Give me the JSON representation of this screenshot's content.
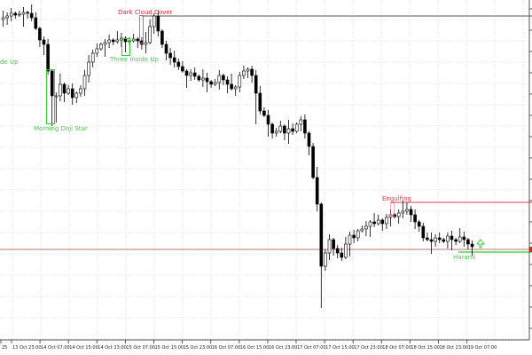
{
  "chart_data": {
    "type": "candlestick",
    "grid": true,
    "x_tick_labels": [
      "25",
      "13 Oct 23:00",
      "14 Oct 07:00",
      "14 Oct 15:00",
      "14 Oct 23:00",
      "15 Oct 07:00",
      "15 Oct 15:00",
      "15 Oct 23:00",
      "16 Oct 07:00",
      "16 Oct 15:00",
      "16 Oct 23:00",
      "17 Oct 07:00",
      "17 Oct 15:00",
      "17 Oct 23:00",
      "18 Oct 07:00",
      "18 Oct 15:00",
      "18 Oct 23:00",
      "19 Oct 07:00"
    ],
    "close": [
      380,
      382,
      385,
      383,
      384,
      386,
      385,
      380,
      368,
      355,
      350,
      320,
      292,
      292,
      305,
      295,
      300,
      290,
      295,
      300,
      315,
      330,
      340,
      345,
      350,
      352,
      355,
      353,
      355,
      357,
      353,
      354,
      356,
      354,
      350,
      352,
      370,
      382,
      365,
      350,
      340,
      335,
      330,
      325,
      320,
      315,
      318,
      314,
      310,
      312,
      308,
      305,
      307,
      315,
      310,
      305,
      300,
      302,
      315,
      320,
      322,
      315,
      295,
      275,
      270,
      260,
      250,
      252,
      258,
      250,
      255,
      252,
      260,
      265,
      250,
      235,
      200,
      170,
      100,
      115,
      130,
      120,
      115,
      110,
      125,
      135,
      132,
      140,
      142,
      145,
      150,
      148,
      152,
      148,
      155,
      158,
      156,
      160,
      162,
      164,
      158,
      150,
      145,
      132,
      130,
      128,
      132,
      130,
      128,
      134,
      130,
      128,
      133,
      130,
      125,
      122
    ],
    "extremes": {
      "12": {
        "low": 258
      },
      "13": {
        "low": 262
      },
      "37": {
        "high": 385
      },
      "36": {
        "high": 378
      },
      "78": {
        "low": 53
      },
      "79": {
        "low": 95
      },
      "99": {
        "high": 172
      },
      "62": {
        "low": 260
      }
    },
    "current_price": 119,
    "colors": {
      "bull": "#ffffff",
      "bear": "#000000",
      "bullish_pattern": "#33cc33",
      "bearish_pattern": "#ee3344",
      "price_line": "#c87070"
    },
    "patterns": [
      {
        "label": "de Up",
        "type": "bullish"
      },
      {
        "label": "Morning Doji Star",
        "type": "bullish"
      },
      {
        "label": "Three Inside Up",
        "type": "bullish"
      },
      {
        "label": "Dark Cloud Cover",
        "type": "bearish",
        "level": 382
      },
      {
        "label": "Engulfing",
        "type": "bearish",
        "level": 172
      },
      {
        "label": "Harami",
        "type": "bullish",
        "level": 116
      }
    ]
  }
}
